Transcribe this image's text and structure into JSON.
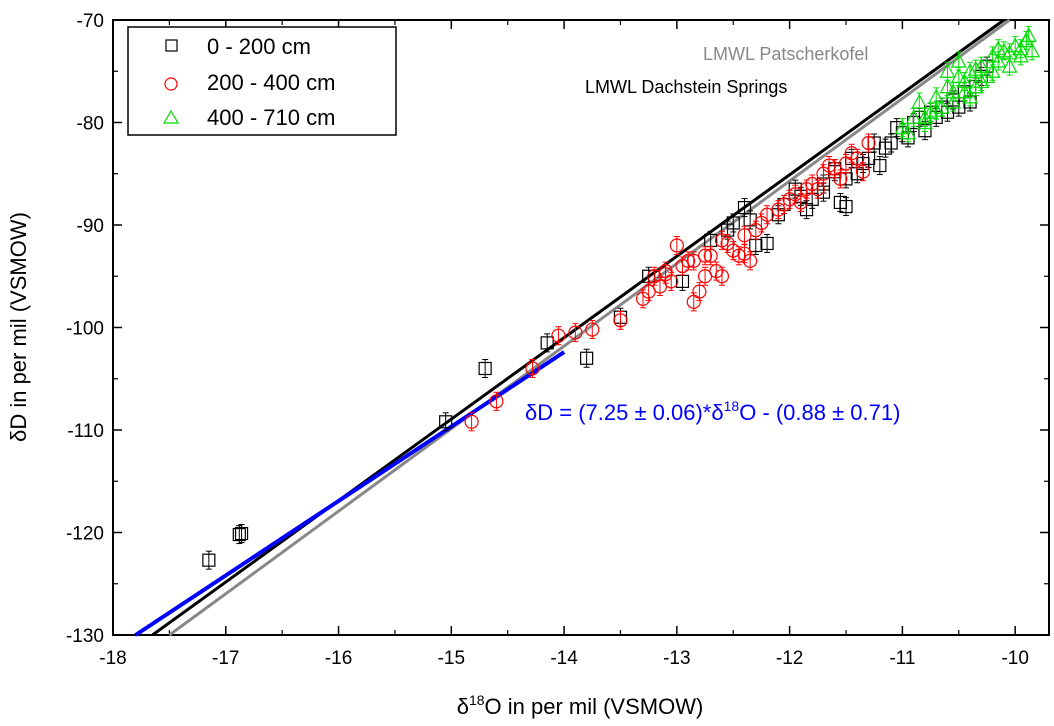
{
  "chart_data": {
    "type": "scatter",
    "xlabel": {
      "prefix": "δ",
      "sup": "18",
      "suffix": "O in per mil (VSMOW)"
    },
    "ylabel": "δD in per mil (VSMOW)",
    "xlim": [
      -18,
      -9.7
    ],
    "ylim": [
      -130,
      -70
    ],
    "xticks": [
      -18,
      -17,
      -16,
      -15,
      -14,
      -13,
      -12,
      -11,
      -10
    ],
    "yticks": [
      -130,
      -120,
      -110,
      -100,
      -90,
      -80,
      -70
    ],
    "grid": false,
    "legend_position": "top-left",
    "series": [
      {
        "name": "0 - 200 cm",
        "marker": "square",
        "color": "#000000",
        "x": [
          -17.15,
          -16.88,
          -16.86,
          -15.05,
          -14.7,
          -14.15,
          -13.8,
          -13.5,
          -13.25,
          -12.95,
          -12.7,
          -12.55,
          -12.4,
          -12.35,
          -12.3,
          -12.2,
          -12.05,
          -11.95,
          -11.85,
          -11.8,
          -11.7,
          -11.6,
          -11.55,
          -11.5,
          -11.5,
          -11.45,
          -11.4,
          -11.35,
          -11.3,
          -11.25,
          -11.2,
          -11.15,
          -11.1,
          -11.05,
          -11.0,
          -10.95,
          -10.9,
          -10.85,
          -10.8,
          -10.75,
          -10.7,
          -10.65,
          -10.6,
          -10.55,
          -10.5,
          -10.45,
          -10.4,
          -10.35,
          -10.3,
          -10.25,
          -12.5,
          -12.1,
          -11.7,
          -11.9,
          -11.6
        ],
        "y": [
          -122.7,
          -120.2,
          -120.1,
          -109.2,
          -104.0,
          -101.5,
          -103.0,
          -99.0,
          -95.0,
          -95.5,
          -91.5,
          -90.5,
          -88.3,
          -89.5,
          -92.0,
          -91.8,
          -88.0,
          -86.5,
          -88.5,
          -87.5,
          -86.0,
          -84.5,
          -87.8,
          -88.2,
          -85.5,
          -83.5,
          -85.0,
          -84.0,
          -83.5,
          -82.0,
          -84.2,
          -82.5,
          -82.0,
          -80.5,
          -81.0,
          -81.5,
          -80.0,
          -79.5,
          -80.8,
          -79.0,
          -79.5,
          -78.5,
          -79.0,
          -77.8,
          -78.5,
          -77.0,
          -78.0,
          -76.5,
          -75.5,
          -74.5,
          -89.8,
          -89.0,
          -86.8,
          -87.2,
          -84.8
        ]
      },
      {
        "name": "200 - 400 cm",
        "marker": "circle",
        "color": "#ff0000",
        "x": [
          -14.82,
          -14.6,
          -14.28,
          -14.05,
          -13.9,
          -13.75,
          -13.5,
          -13.3,
          -13.25,
          -13.2,
          -13.15,
          -13.1,
          -13.05,
          -13.0,
          -12.95,
          -12.9,
          -12.85,
          -12.8,
          -12.75,
          -12.7,
          -12.65,
          -12.6,
          -12.55,
          -12.5,
          -12.45,
          -12.4,
          -12.35,
          -12.3,
          -12.25,
          -12.2,
          -12.1,
          -12.05,
          -12.0,
          -11.95,
          -11.9,
          -11.85,
          -11.8,
          -11.75,
          -11.7,
          -11.6,
          -11.55,
          -11.5,
          -11.4,
          -11.35,
          -11.3,
          -12.85,
          -13.1,
          -12.75,
          -12.6,
          -12.4,
          -11.65,
          -11.45
        ],
        "y": [
          -109.2,
          -107.2,
          -104.0,
          -100.8,
          -100.5,
          -100.2,
          -99.3,
          -97.2,
          -96.5,
          -95.0,
          -96.0,
          -94.5,
          -95.5,
          -92.0,
          -94.0,
          -93.5,
          -97.5,
          -96.5,
          -95.0,
          -93.0,
          -94.5,
          -95.0,
          -91.8,
          -92.5,
          -93.0,
          -91.0,
          -93.5,
          -90.5,
          -89.8,
          -89.0,
          -88.5,
          -88.0,
          -87.5,
          -87.0,
          -87.8,
          -86.5,
          -86.0,
          -86.5,
          -85.0,
          -84.5,
          -85.5,
          -84.0,
          -83.5,
          -84.8,
          -82.0,
          -93.5,
          -94.8,
          -93.0,
          -91.5,
          -92.8,
          -84.2,
          -83.0
        ]
      },
      {
        "name": "400 - 710 cm",
        "marker": "triangle",
        "color": "#00dd00",
        "x": [
          -11.0,
          -10.95,
          -10.9,
          -10.85,
          -10.8,
          -10.75,
          -10.7,
          -10.65,
          -10.6,
          -10.55,
          -10.5,
          -10.45,
          -10.4,
          -10.35,
          -10.3,
          -10.25,
          -10.2,
          -10.15,
          -10.1,
          -10.05,
          -10.0,
          -9.95,
          -9.9,
          -9.88,
          -9.85,
          -10.6,
          -10.5,
          -10.4,
          -10.3,
          -10.2,
          -10.7,
          -10.8,
          -10.55,
          -10.45,
          -10.35,
          -10.15,
          -10.05,
          -9.95
        ],
        "y": [
          -80.5,
          -81.0,
          -79.5,
          -78.0,
          -80.0,
          -79.0,
          -77.5,
          -78.5,
          -76.5,
          -77.0,
          -75.5,
          -76.0,
          -75.0,
          -76.5,
          -74.5,
          -75.5,
          -73.5,
          -74.0,
          -73.0,
          -74.5,
          -72.5,
          -73.5,
          -72.0,
          -71.5,
          -73.0,
          -75.0,
          -74.0,
          -77.5,
          -76.0,
          -75.0,
          -78.8,
          -79.5,
          -78.0,
          -77.0,
          -74.8,
          -72.8,
          -73.2,
          -72.8
        ]
      }
    ],
    "lines": [
      {
        "name": "LMWL Patscherkofel",
        "color": "#888888",
        "x": [
          -17.5,
          -10.05
        ],
        "y": [
          -130,
          -70
        ]
      },
      {
        "name": "LMWL Dachstein Springs",
        "color": "#000000",
        "x": [
          -17.65,
          -10.1
        ],
        "y": [
          -130,
          -70
        ]
      },
      {
        "name": "regression",
        "color": "#0000ff",
        "x": [
          -17.8,
          -14.0
        ],
        "y": [
          -130,
          -102.4
        ]
      }
    ],
    "annotations": {
      "lmwl_patscherkofel": "LMWL Patscherkofel",
      "lmwl_dachstein": "LMWL Dachstein Springs",
      "equation": {
        "part1": "δD = (7.25 ± 0.06)*δ",
        "sup": "18",
        "part2": "O - (0.88 ± 0.71)"
      }
    }
  }
}
